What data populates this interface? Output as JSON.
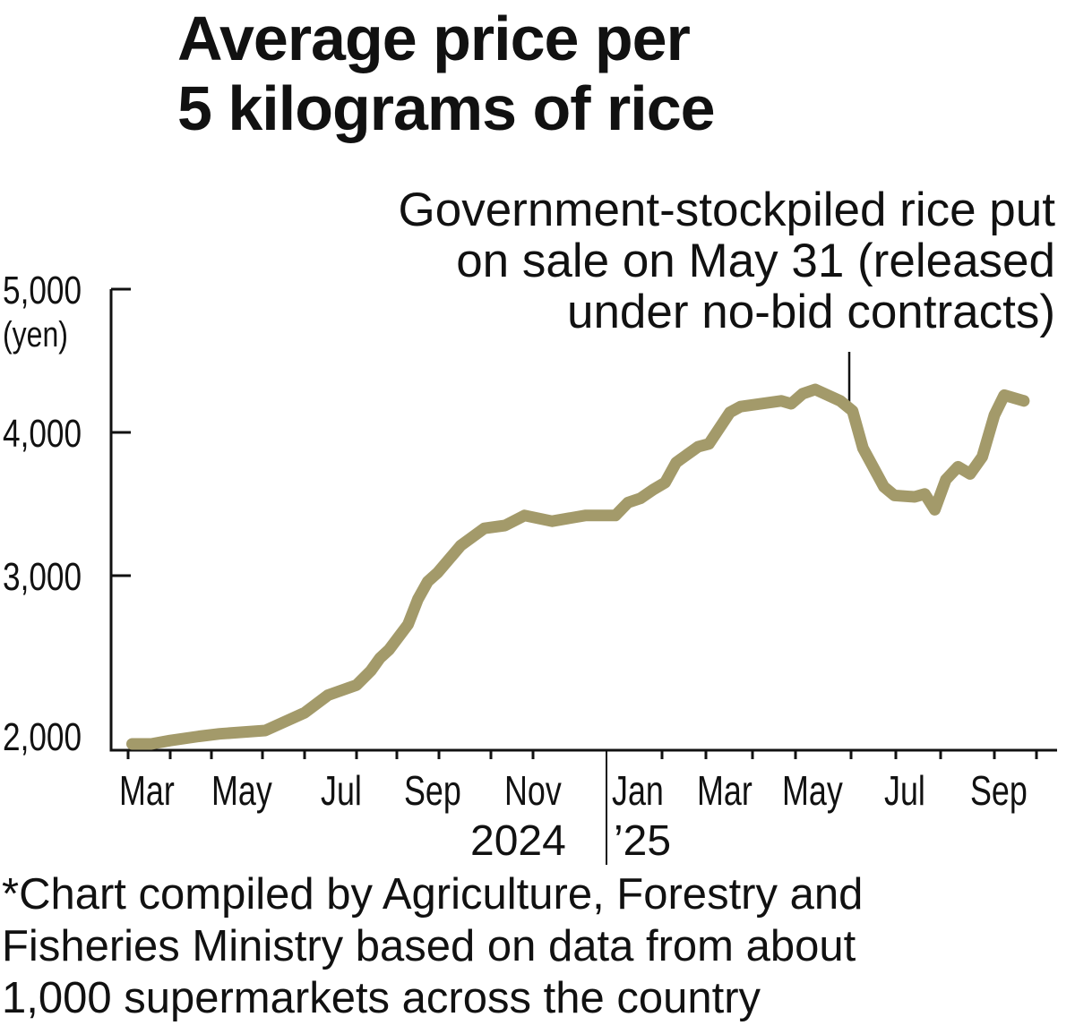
{
  "chart_data": {
    "type": "line",
    "title": "Average price per 5 kilograms of rice",
    "title_lines": [
      "Average price per",
      "5 kilograms of rice"
    ],
    "ylabel": "(yen)",
    "ylim": [
      2000,
      5000
    ],
    "yticks": [
      "5,000",
      "4,000",
      "3,000",
      "2,000"
    ],
    "ytick_values": [
      5000,
      4000,
      3000,
      2000
    ],
    "xtick_labels": [
      "Mar",
      "May",
      "Jul",
      "Sep",
      "Nov",
      "Jan",
      "Mar",
      "May",
      "Jul",
      "Sep"
    ],
    "year_labels": [
      "2024",
      "’25"
    ],
    "line_color": "#A39A6A",
    "annotation": {
      "lines": [
        "Government-stockpiled rice put",
        "on sale on May 31 (released",
        "under no-bid contracts)"
      ],
      "date": "2025-05-31"
    },
    "series": [
      {
        "name": "Average price",
        "unit": "yen",
        "points": [
          [
            "2024-03-04",
            2000
          ],
          [
            "2024-03-18",
            2000
          ],
          [
            "2024-04-01",
            2020
          ],
          [
            "2024-04-22",
            2045
          ],
          [
            "2024-05-06",
            2060
          ],
          [
            "2024-06-03",
            2080
          ],
          [
            "2024-07-01",
            2185
          ],
          [
            "2024-07-15",
            2290
          ],
          [
            "2024-08-01",
            2350
          ],
          [
            "2024-08-12",
            2435
          ],
          [
            "2024-08-19",
            2510
          ],
          [
            "2024-08-26",
            2560
          ],
          [
            "2024-09-09",
            2710
          ],
          [
            "2024-09-16",
            2860
          ],
          [
            "2024-09-23",
            2965
          ],
          [
            "2024-09-30",
            3020
          ],
          [
            "2024-10-14",
            3210
          ],
          [
            "2024-10-28",
            3330
          ],
          [
            "2024-11-11",
            3350
          ],
          [
            "2024-11-25",
            3420
          ],
          [
            "2024-12-09",
            3380
          ],
          [
            "2024-12-23",
            3420
          ],
          [
            "2025-01-06",
            3420
          ],
          [
            "2025-01-13",
            3510
          ],
          [
            "2025-01-20",
            3540
          ],
          [
            "2025-01-27",
            3600
          ],
          [
            "2025-02-03",
            3650
          ],
          [
            "2025-02-10",
            3790
          ],
          [
            "2025-02-24",
            3900
          ],
          [
            "2025-03-03",
            3920
          ],
          [
            "2025-03-17",
            4140
          ],
          [
            "2025-03-24",
            4180
          ],
          [
            "2025-04-21",
            4220
          ],
          [
            "2025-04-28",
            4200
          ],
          [
            "2025-05-05",
            4270
          ],
          [
            "2025-05-12",
            4300
          ],
          [
            "2025-05-26",
            4220
          ],
          [
            "2025-06-02",
            4150
          ],
          [
            "2025-06-09",
            3890
          ],
          [
            "2025-06-23",
            3620
          ],
          [
            "2025-06-30",
            3560
          ],
          [
            "2025-07-14",
            3550
          ],
          [
            "2025-07-21",
            3570
          ],
          [
            "2025-07-28",
            3460
          ],
          [
            "2025-08-04",
            3670
          ],
          [
            "2025-08-11",
            3760
          ],
          [
            "2025-08-18",
            3710
          ],
          [
            "2025-08-25",
            3830
          ],
          [
            "2025-09-01",
            4120
          ],
          [
            "2025-09-08",
            4260
          ],
          [
            "2025-09-22",
            4220
          ]
        ]
      }
    ]
  },
  "footnote": {
    "lines": [
      "*Chart compiled by Agriculture, Forestry and",
      "Fisheries Ministry based on data from about",
      "1,000 supermarkets across the country"
    ]
  }
}
